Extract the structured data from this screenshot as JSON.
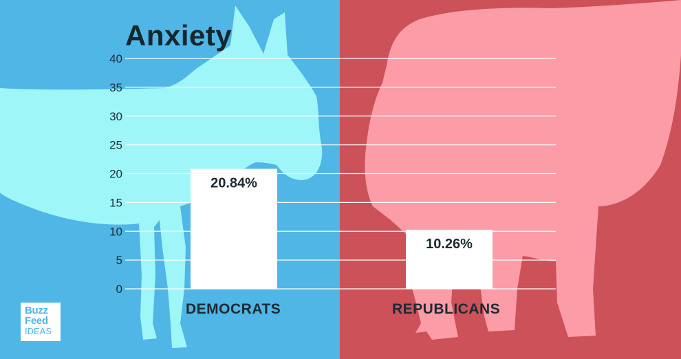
{
  "colors": {
    "left_bg": "#4fb6e6",
    "right_bg": "#cc5159",
    "donkey": "#9ff6f9",
    "elephant": "#fb9ca6",
    "bar": "#ffffff",
    "text_dark": "#17262e"
  },
  "illustrations": {
    "left": "donkey-silhouette",
    "right": "elephant-silhouette"
  },
  "chart_data": {
    "type": "bar",
    "title": "Anxiety",
    "categories": [
      "DEMOCRATS",
      "REPUBLICANS"
    ],
    "values": [
      20.84,
      10.26
    ],
    "value_labels": [
      "20.84%",
      "10.26%"
    ],
    "ylim": [
      0,
      40
    ],
    "yticks": [
      "0",
      "5",
      "10",
      "15",
      "20",
      "25",
      "30",
      "35",
      "40"
    ],
    "grid": true,
    "xlabel": "",
    "ylabel": ""
  },
  "logo": {
    "line1": "Buzz",
    "line2": "Feed",
    "line3": "IDEAS"
  }
}
